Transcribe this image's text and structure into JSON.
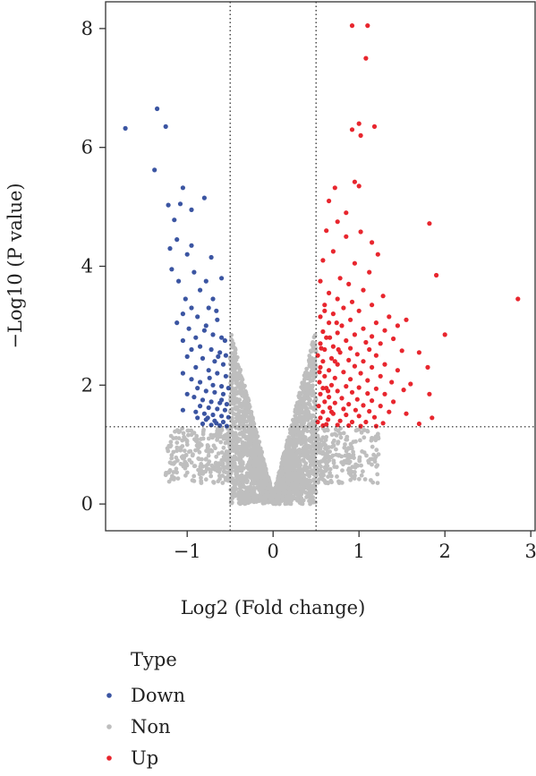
{
  "chart_data": {
    "type": "scatter",
    "subtype": "volcano",
    "xlabel": "Log2 (Fold change)",
    "ylabel": "−Log10 (P value)",
    "xlim": [
      -1.95,
      3.05
    ],
    "ylim": [
      -0.45,
      8.45
    ],
    "x_ticks": [
      -1,
      0,
      1,
      2,
      3
    ],
    "x_tick_labels": [
      "−1",
      "0",
      "1",
      "2",
      "3"
    ],
    "y_ticks": [
      0,
      2,
      4,
      6,
      8
    ],
    "y_tick_labels": [
      "0",
      "2",
      "4",
      "6",
      "8"
    ],
    "grid": false,
    "thresholds": {
      "fold_change": [
        -0.5,
        0.5
      ],
      "p_value_log": 1.3
    },
    "colors": {
      "Down": "#3b55a2",
      "Non": "#bebebe",
      "Up": "#e8262e"
    },
    "legend": {
      "title": "Type",
      "placement": "bottom-left",
      "entries": [
        "Down",
        "Non",
        "Up"
      ]
    },
    "series": [
      {
        "name": "Down",
        "points": [
          [
            -1.72,
            6.32
          ],
          [
            -1.35,
            6.65
          ],
          [
            -1.25,
            6.35
          ],
          [
            -1.38,
            5.62
          ],
          [
            -1.22,
            5.03
          ],
          [
            -1.05,
            5.32
          ],
          [
            -0.8,
            5.15
          ],
          [
            -1.08,
            5.05
          ],
          [
            -0.95,
            4.95
          ],
          [
            -1.15,
            4.78
          ],
          [
            -1.12,
            4.45
          ],
          [
            -0.95,
            4.35
          ],
          [
            -1.2,
            4.3
          ],
          [
            -1.0,
            4.2
          ],
          [
            -0.72,
            4.15
          ],
          [
            -1.18,
            3.95
          ],
          [
            -0.92,
            3.9
          ],
          [
            -0.78,
            3.75
          ],
          [
            -0.6,
            3.8
          ],
          [
            -1.1,
            3.75
          ],
          [
            -0.85,
            3.6
          ],
          [
            -1.02,
            3.45
          ],
          [
            -0.7,
            3.45
          ],
          [
            -0.95,
            3.3
          ],
          [
            -0.75,
            3.3
          ],
          [
            -1.05,
            3.2
          ],
          [
            -0.88,
            3.15
          ],
          [
            -0.65,
            3.1
          ],
          [
            -1.12,
            3.05
          ],
          [
            -0.98,
            2.95
          ],
          [
            -0.8,
            2.92
          ],
          [
            -0.7,
            2.85
          ],
          [
            -0.6,
            2.8
          ],
          [
            -0.9,
            2.8
          ],
          [
            -1.05,
            2.75
          ],
          [
            -0.85,
            2.65
          ],
          [
            -0.72,
            2.6
          ],
          [
            -0.62,
            2.55
          ],
          [
            -0.95,
            2.6
          ],
          [
            -0.55,
            2.5
          ],
          [
            -1.0,
            2.48
          ],
          [
            -0.82,
            2.45
          ],
          [
            -0.68,
            2.4
          ],
          [
            -0.58,
            2.35
          ],
          [
            -0.9,
            2.3
          ],
          [
            -0.75,
            2.25
          ],
          [
            -0.65,
            2.2
          ],
          [
            -0.55,
            2.15
          ],
          [
            -1.05,
            2.2
          ],
          [
            -0.95,
            2.1
          ],
          [
            -0.85,
            2.05
          ],
          [
            -0.7,
            2.0
          ],
          [
            -0.6,
            1.98
          ],
          [
            -0.52,
            1.95
          ],
          [
            -0.88,
            1.95
          ],
          [
            -0.78,
            1.9
          ],
          [
            -0.68,
            1.88
          ],
          [
            -0.58,
            1.85
          ],
          [
            -1.0,
            1.85
          ],
          [
            -0.92,
            1.8
          ],
          [
            -0.82,
            1.75
          ],
          [
            -0.72,
            1.72
          ],
          [
            -0.62,
            1.7
          ],
          [
            -0.54,
            1.68
          ],
          [
            -0.85,
            1.65
          ],
          [
            -0.75,
            1.62
          ],
          [
            -0.65,
            1.6
          ],
          [
            -0.56,
            1.58
          ],
          [
            -1.05,
            1.58
          ],
          [
            -0.9,
            1.55
          ],
          [
            -0.8,
            1.52
          ],
          [
            -0.7,
            1.5
          ],
          [
            -0.6,
            1.48
          ],
          [
            -0.52,
            1.46
          ],
          [
            -0.88,
            1.45
          ],
          [
            -0.78,
            1.42
          ],
          [
            -0.68,
            1.4
          ],
          [
            -0.58,
            1.38
          ],
          [
            -0.82,
            1.35
          ],
          [
            -0.72,
            1.33
          ],
          [
            -0.62,
            1.32
          ],
          [
            -0.54,
            1.31
          ],
          [
            -0.66,
            1.36
          ],
          [
            -0.76,
            1.45
          ],
          [
            -0.6,
            1.75
          ],
          [
            -0.74,
            2.12
          ],
          [
            -0.64,
            2.48
          ],
          [
            -0.56,
            2.75
          ],
          [
            -0.78,
            3.0
          ],
          [
            -0.66,
            3.25
          ]
        ]
      },
      {
        "name": "Up",
        "points": [
          [
            0.92,
            8.05
          ],
          [
            1.1,
            8.05
          ],
          [
            1.08,
            7.5
          ],
          [
            1.0,
            6.4
          ],
          [
            0.92,
            6.3
          ],
          [
            1.18,
            6.35
          ],
          [
            1.02,
            6.2
          ],
          [
            0.95,
            5.42
          ],
          [
            1.0,
            5.35
          ],
          [
            0.72,
            5.32
          ],
          [
            0.65,
            5.1
          ],
          [
            0.85,
            4.9
          ],
          [
            0.75,
            4.75
          ],
          [
            0.62,
            4.6
          ],
          [
            1.02,
            4.58
          ],
          [
            1.82,
            4.72
          ],
          [
            0.85,
            4.5
          ],
          [
            1.15,
            4.4
          ],
          [
            1.22,
            4.2
          ],
          [
            1.9,
            3.85
          ],
          [
            2.85,
            3.45
          ],
          [
            0.7,
            4.25
          ],
          [
            0.58,
            4.1
          ],
          [
            0.95,
            4.05
          ],
          [
            1.12,
            3.9
          ],
          [
            0.78,
            3.8
          ],
          [
            0.55,
            3.75
          ],
          [
            0.88,
            3.7
          ],
          [
            1.05,
            3.6
          ],
          [
            0.65,
            3.55
          ],
          [
            1.28,
            3.5
          ],
          [
            0.75,
            3.45
          ],
          [
            0.92,
            3.4
          ],
          [
            1.15,
            3.35
          ],
          [
            0.6,
            3.35
          ],
          [
            0.82,
            3.3
          ],
          [
            1.0,
            3.25
          ],
          [
            1.35,
            3.15
          ],
          [
            1.55,
            3.1
          ],
          [
            0.7,
            3.2
          ],
          [
            0.55,
            3.15
          ],
          [
            0.9,
            3.1
          ],
          [
            1.2,
            3.05
          ],
          [
            1.45,
            3.0
          ],
          [
            0.65,
            3.05
          ],
          [
            0.8,
            3.0
          ],
          [
            1.05,
            2.95
          ],
          [
            1.3,
            2.92
          ],
          [
            2.0,
            2.85
          ],
          [
            0.58,
            2.9
          ],
          [
            0.75,
            2.88
          ],
          [
            0.95,
            2.85
          ],
          [
            1.15,
            2.82
          ],
          [
            1.4,
            2.78
          ],
          [
            0.62,
            2.8
          ],
          [
            0.85,
            2.75
          ],
          [
            1.08,
            2.72
          ],
          [
            1.25,
            2.7
          ],
          [
            0.55,
            2.7
          ],
          [
            0.7,
            2.65
          ],
          [
            0.9,
            2.62
          ],
          [
            1.12,
            2.6
          ],
          [
            1.5,
            2.58
          ],
          [
            1.7,
            2.55
          ],
          [
            0.6,
            2.6
          ],
          [
            0.78,
            2.55
          ],
          [
            0.98,
            2.52
          ],
          [
            1.2,
            2.5
          ],
          [
            0.52,
            2.5
          ],
          [
            0.68,
            2.45
          ],
          [
            0.88,
            2.42
          ],
          [
            1.05,
            2.4
          ],
          [
            1.3,
            2.35
          ],
          [
            1.8,
            2.3
          ],
          [
            0.58,
            2.4
          ],
          [
            0.75,
            2.35
          ],
          [
            0.95,
            2.32
          ],
          [
            1.15,
            2.3
          ],
          [
            1.45,
            2.25
          ],
          [
            0.55,
            2.3
          ],
          [
            0.65,
            2.25
          ],
          [
            0.82,
            2.22
          ],
          [
            1.02,
            2.2
          ],
          [
            1.25,
            2.15
          ],
          [
            0.6,
            2.15
          ],
          [
            0.72,
            2.12
          ],
          [
            0.9,
            2.1
          ],
          [
            1.1,
            2.08
          ],
          [
            1.38,
            2.05
          ],
          [
            1.6,
            2.02
          ],
          [
            0.54,
            2.05
          ],
          [
            0.68,
            2.0
          ],
          [
            0.85,
            1.98
          ],
          [
            1.0,
            1.96
          ],
          [
            1.2,
            1.94
          ],
          [
            1.52,
            1.92
          ],
          [
            0.58,
            1.95
          ],
          [
            0.75,
            1.9
          ],
          [
            0.92,
            1.88
          ],
          [
            1.1,
            1.86
          ],
          [
            1.3,
            1.85
          ],
          [
            1.82,
            1.85
          ],
          [
            0.55,
            1.85
          ],
          [
            0.65,
            1.8
          ],
          [
            0.8,
            1.78
          ],
          [
            0.98,
            1.76
          ],
          [
            1.15,
            1.74
          ],
          [
            1.4,
            1.72
          ],
          [
            0.6,
            1.72
          ],
          [
            0.72,
            1.7
          ],
          [
            0.88,
            1.68
          ],
          [
            1.05,
            1.66
          ],
          [
            1.25,
            1.65
          ],
          [
            0.53,
            1.65
          ],
          [
            0.66,
            1.62
          ],
          [
            0.82,
            1.6
          ],
          [
            0.96,
            1.58
          ],
          [
            1.12,
            1.56
          ],
          [
            1.35,
            1.55
          ],
          [
            1.55,
            1.52
          ],
          [
            0.58,
            1.55
          ],
          [
            0.7,
            1.52
          ],
          [
            0.85,
            1.5
          ],
          [
            1.0,
            1.48
          ],
          [
            1.18,
            1.46
          ],
          [
            1.85,
            1.45
          ],
          [
            0.55,
            1.45
          ],
          [
            0.64,
            1.42
          ],
          [
            0.78,
            1.4
          ],
          [
            0.92,
            1.38
          ],
          [
            1.08,
            1.38
          ],
          [
            1.28,
            1.36
          ],
          [
            1.7,
            1.35
          ],
          [
            0.52,
            1.38
          ],
          [
            0.62,
            1.34
          ],
          [
            0.75,
            1.33
          ],
          [
            0.88,
            1.32
          ],
          [
            1.02,
            1.31
          ],
          [
            1.2,
            1.31
          ],
          [
            0.58,
            1.32
          ],
          [
            0.68,
            1.55
          ],
          [
            0.62,
            1.95
          ],
          [
            0.72,
            2.4
          ],
          [
            0.66,
            2.8
          ],
          [
            0.6,
            3.25
          ],
          [
            0.74,
            3.05
          ],
          [
            0.56,
            2.62
          ],
          [
            0.54,
            2.22
          ],
          [
            0.64,
            1.9
          ],
          [
            0.76,
            2.6
          ]
        ]
      }
    ],
    "non_significant_description_only": false
  }
}
